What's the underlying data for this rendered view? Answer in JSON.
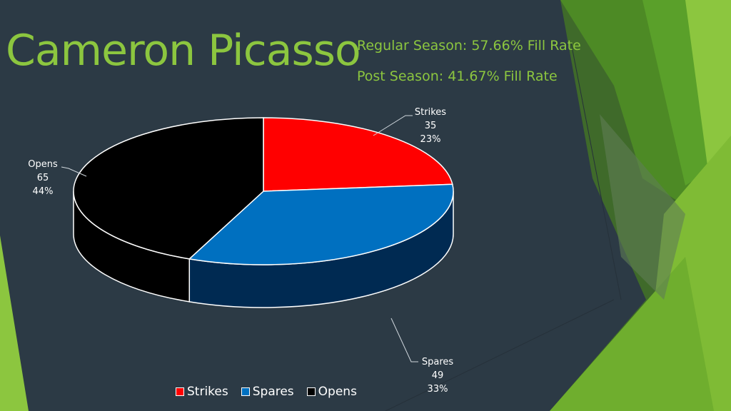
{
  "page": {
    "title": "Cameron Picasso",
    "regular_season": "Regular Season: 57.66% Fill Rate",
    "post_season": "Post Season: 41.67% Fill Rate"
  },
  "colors": {
    "title_green": "#8cc63f",
    "background": "#2c3a45"
  },
  "chart_data": {
    "type": "pie",
    "style": "3d",
    "title": "",
    "series": [
      {
        "name": "Strikes",
        "value": 35,
        "percent": "23%",
        "color": "#ff0000",
        "side_color": "#a00000"
      },
      {
        "name": "Spares",
        "value": 49,
        "percent": "33%",
        "color": "#0070c0",
        "side_color": "#002a52"
      },
      {
        "name": "Opens",
        "value": 65,
        "percent": "44%",
        "color": "#000000",
        "side_color": "#000000"
      }
    ],
    "legend_placement": "bottom"
  }
}
